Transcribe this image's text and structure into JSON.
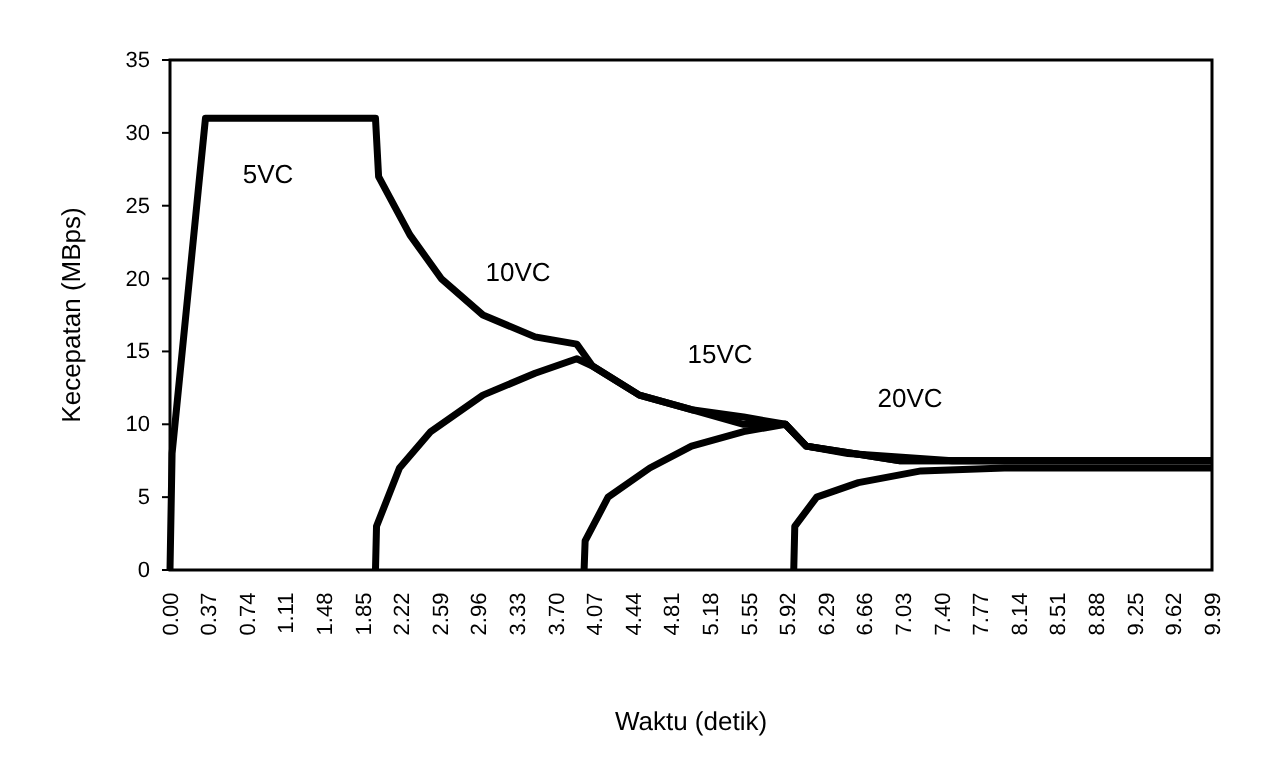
{
  "chart_data": {
    "type": "line",
    "xlabel": "Waktu (detik)",
    "ylabel": "Kecepatan (MBps)",
    "xlim": [
      0,
      9.99
    ],
    "ylim": [
      0,
      35
    ],
    "xticks": [
      {
        "value": 0,
        "label": "0.00"
      },
      0.37,
      0.74,
      1.11,
      1.48,
      1.85,
      2.22,
      2.59,
      2.96,
      3.33,
      {
        "value": 3.7,
        "label": "3.70"
      },
      4.07,
      4.44,
      4.81,
      5.18,
      5.55,
      5.92,
      6.29,
      6.66,
      7.03,
      {
        "value": 7.4,
        "label": "7.40"
      },
      7.77,
      8.14,
      8.51,
      8.88,
      9.25,
      9.62,
      9.99
    ],
    "yticks": [
      0,
      5,
      10,
      15,
      20,
      25,
      30,
      35
    ],
    "grid": false,
    "marker": "none",
    "line_style": "solid",
    "series": [
      {
        "color": "#000000",
        "x": [
          0,
          0.02,
          0.27,
          0.34,
          1.97,
          2.0,
          2.3,
          2.6,
          3.0,
          3.5,
          3.9,
          4.05,
          4.5,
          5.0,
          5.5,
          5.9,
          6.1,
          6.5,
          7.5,
          8.5,
          9.99
        ],
        "values": [
          0,
          8,
          26,
          31,
          31,
          27,
          23,
          20,
          17.5,
          16,
          15.5,
          14,
          12,
          11,
          10.5,
          10,
          8.5,
          8,
          7.5,
          7.5,
          7.5
        ]
      },
      {
        "color": "#000000",
        "x": [
          1.97,
          1.98,
          2.2,
          2.5,
          3.0,
          3.5,
          3.9,
          4.05,
          4.5,
          5.0,
          5.5,
          5.9,
          6.1,
          7.0,
          9.99
        ],
        "values": [
          0,
          3,
          7,
          9.5,
          12,
          13.5,
          14.5,
          14,
          12,
          11,
          10,
          10,
          8.5,
          7.5,
          7.5
        ]
      },
      {
        "color": "#000000",
        "x": [
          3.97,
          3.98,
          4.2,
          4.6,
          5.0,
          5.5,
          5.9,
          6.1,
          7.0,
          9.99
        ],
        "values": [
          0,
          2,
          5,
          7,
          8.5,
          9.5,
          10,
          8.5,
          7.5,
          7.5
        ]
      },
      {
        "color": "#000000",
        "x": [
          5.98,
          5.99,
          6.2,
          6.6,
          7.2,
          8.0,
          9.99
        ],
        "values": [
          0,
          3,
          5,
          6,
          6.8,
          7,
          7
        ]
      }
    ],
    "annotations": [
      "5VC",
      "10VC",
      "15VC",
      "20VC"
    ]
  }
}
